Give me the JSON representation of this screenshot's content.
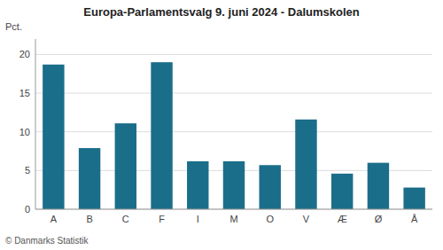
{
  "chart_data": {
    "type": "bar",
    "title": "Europa-Parlamentsvalg 9. juni 2024 - Dalumskolen",
    "categories": [
      "A",
      "B",
      "C",
      "F",
      "I",
      "M",
      "O",
      "V",
      "Æ",
      "Ø",
      "Å"
    ],
    "values": [
      18.7,
      7.9,
      11.1,
      19.0,
      6.2,
      6.2,
      5.7,
      11.6,
      4.6,
      6.0,
      2.8
    ],
    "color": "#1a6e8a",
    "y_label": "Pct.",
    "ylim": [
      0,
      22
    ],
    "yticks": [
      0,
      5,
      10,
      15,
      20
    ],
    "grid": true,
    "footer": "© Danmarks Statistik"
  }
}
